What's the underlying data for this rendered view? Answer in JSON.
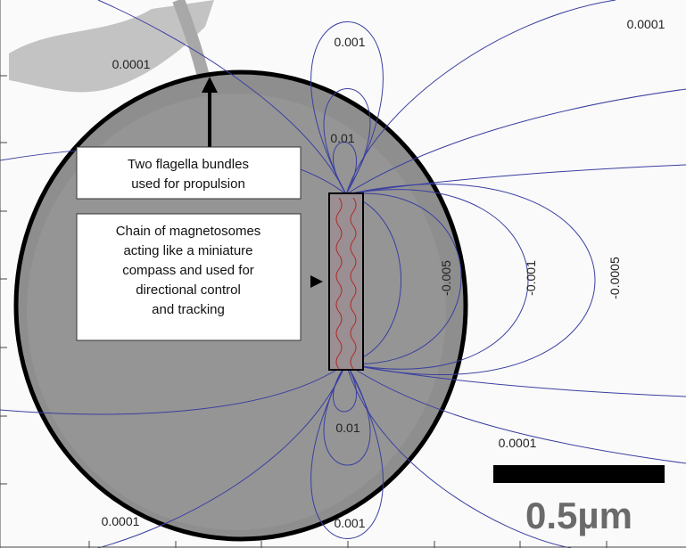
{
  "contour_labels": [
    "0.001",
    "0.0001",
    "0.0001",
    "0.01",
    "0.01",
    "0.0001",
    "0.0001",
    "0.001",
    "-0.005",
    "-0.001",
    "-0.0005"
  ],
  "annotations": [
    {
      "lines": [
        "Two flagella bundles",
        "used for propulsion"
      ]
    },
    {
      "lines": [
        "Chain of magnetosomes",
        "acting like a miniature",
        "compass and used for",
        "directional control",
        "and tracking"
      ]
    }
  ],
  "scale_bar": {
    "label": "0.5µm"
  }
}
